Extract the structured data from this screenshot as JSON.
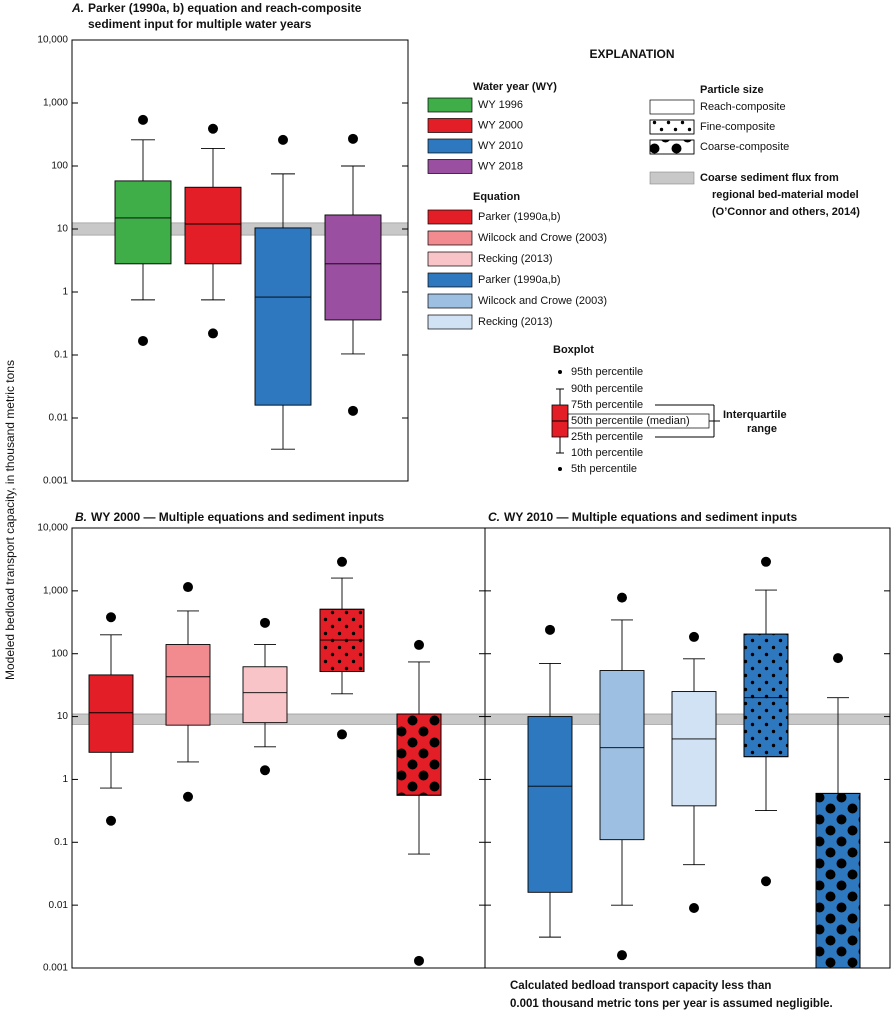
{
  "y_axis_label": "Modeled bedload transport capacity, in thousand metric tons",
  "chart_data": [
    {
      "type": "box",
      "panel": "A.",
      "title": [
        "Parker (1990a, b) equation and reach-composite",
        "sediment input for multiple water years"
      ],
      "log": true,
      "ylim": [
        0.001,
        10000
      ],
      "yticks": [
        0.001,
        0.01,
        0.1,
        1,
        10,
        100,
        {
          "value": 1000,
          "label": "1,000"
        },
        {
          "value": 10000,
          "label": "10,000"
        }
      ],
      "show_tick_labels": true,
      "band": {
        "range": [
          8,
          12.5
        ],
        "color": "#c8c8c8"
      },
      "boxes": [
        {
          "color": "#3fae49",
          "pattern": "none",
          "p5": 0.167,
          "p10": 0.75,
          "p25": 2.8,
          "median": 15,
          "p75": 58,
          "p90": 260,
          "p95": 540
        },
        {
          "color": "#e31e26",
          "pattern": "none",
          "p5": 0.22,
          "p10": 0.75,
          "p25": 2.8,
          "median": 12,
          "p75": 46,
          "p90": 190,
          "p95": 390
        },
        {
          "color": "#2e78bf",
          "pattern": "none",
          "p5": null,
          "p10": 0.0032,
          "p25": 0.016,
          "median": 0.83,
          "p75": 10.4,
          "p90": 75,
          "p95": 260
        },
        {
          "color": "#9b4fa0",
          "pattern": "none",
          "p5": 0.013,
          "p10": 0.104,
          "p25": 0.36,
          "median": 2.8,
          "p75": 16.7,
          "p90": 100,
          "p95": 270
        }
      ]
    },
    {
      "type": "box",
      "panel": "B.",
      "title": [
        "WY 2000 — Multiple equations and sediment inputs"
      ],
      "log": true,
      "ylim": [
        0.001,
        10000
      ],
      "yticks": [
        0.001,
        0.01,
        0.1,
        1,
        10,
        100,
        {
          "value": 1000,
          "label": "1,000"
        },
        {
          "value": 10000,
          "label": "10,000"
        }
      ],
      "show_tick_labels": true,
      "band": {
        "range": [
          7.5,
          11
        ],
        "color": "#c8c8c8"
      },
      "boxes": [
        {
          "color": "#e31e26",
          "pattern": "none",
          "p5": 0.22,
          "p10": 0.73,
          "p25": 2.7,
          "median": 11.5,
          "p75": 46,
          "p90": 200,
          "p95": 380
        },
        {
          "color": "#f28b90",
          "pattern": "none",
          "p5": 0.53,
          "p10": 1.9,
          "p25": 7.3,
          "median": 43,
          "p75": 140,
          "p90": 480,
          "p95": 1150
        },
        {
          "color": "#f9c4c8",
          "pattern": "none",
          "p5": 1.4,
          "p10": 3.3,
          "p25": 8,
          "median": 24,
          "p75": 62,
          "p90": 140,
          "p95": 310
        },
        {
          "color": "#e31e26",
          "pattern": "fine",
          "p5": 5.2,
          "p10": 23,
          "p25": 52,
          "median": 165,
          "p75": 510,
          "p90": 1600,
          "p95": 2900
        },
        {
          "color": "#e31e26",
          "pattern": "coarse",
          "p5": 0.0013,
          "p10": 0.065,
          "p25": 0.56,
          "median": null,
          "p75": 11,
          "p90": 74,
          "p95": 138
        }
      ]
    },
    {
      "type": "box",
      "panel": "C.",
      "title": [
        "WY 2010 — Multiple equations and sediment inputs"
      ],
      "log": true,
      "ylim": [
        0.001,
        10000
      ],
      "yticks": [
        0.001,
        0.01,
        0.1,
        1,
        10,
        100,
        1000,
        10000
      ],
      "show_tick_labels": false,
      "band": {
        "range": [
          7.5,
          11
        ],
        "color": "#c8c8c8"
      },
      "boxes": [
        {
          "color": "#2e78bf",
          "pattern": "none",
          "p5": null,
          "p10": 0.0031,
          "p25": 0.016,
          "median": 0.78,
          "p75": 10,
          "p90": 70,
          "p95": 240
        },
        {
          "color": "#9cbfe2",
          "pattern": "none",
          "p5": 0.0016,
          "p10": 0.01,
          "p25": 0.11,
          "median": 3.2,
          "p75": 54,
          "p90": 345,
          "p95": 780
        },
        {
          "color": "#d0e2f3",
          "pattern": "none",
          "p5": 0.009,
          "p10": 0.044,
          "p25": 0.38,
          "median": 4.4,
          "p75": 25,
          "p90": 83,
          "p95": 185
        },
        {
          "color": "#2e78bf",
          "pattern": "fine",
          "p5": 0.024,
          "p10": 0.32,
          "p25": 2.3,
          "median": 20,
          "p75": 205,
          "p90": 1030,
          "p95": 2900
        },
        {
          "color": "#2e78bf",
          "pattern": "coarse",
          "p5": null,
          "p10": null,
          "p25": null,
          "median": null,
          "p75": 0.6,
          "p90": 20,
          "p95": 85
        }
      ]
    }
  ],
  "explanation": {
    "title": "EXPLANATION",
    "water_year": {
      "heading": "Water year (WY)",
      "items": [
        {
          "label": "WY 1996",
          "color": "#3fae49"
        },
        {
          "label": "WY 2000",
          "color": "#e31e26"
        },
        {
          "label": "WY 2010",
          "color": "#2e78bf"
        },
        {
          "label": "WY 2018",
          "color": "#9b4fa0"
        }
      ]
    },
    "equation": {
      "heading": "Equation",
      "items": [
        {
          "label": "Parker (1990a,b)",
          "color": "#e31e26"
        },
        {
          "label": "Wilcock and Crowe (2003)",
          "color": "#f28b90"
        },
        {
          "label": "Recking (2013)",
          "color": "#f9c4c8"
        },
        {
          "label": "Parker (1990a,b)",
          "color": "#2e78bf"
        },
        {
          "label": "Wilcock and Crowe (2003)",
          "color": "#9cbfe2"
        },
        {
          "label": "Recking (2013)",
          "color": "#d0e2f3"
        }
      ]
    },
    "particle_size": {
      "heading": "Particle size",
      "items": [
        {
          "label": "Reach-composite",
          "pattern": "none"
        },
        {
          "label": "Fine-composite",
          "pattern": "fine"
        },
        {
          "label": "Coarse-composite",
          "pattern": "coarse"
        }
      ]
    },
    "band": {
      "label": [
        "Coarse sediment flux from",
        "regional bed-material model",
        "(O’Connor and others, 2014)"
      ],
      "color": "#c8c8c8"
    },
    "boxplot": {
      "heading": "Boxplot",
      "color": "#e31e26",
      "labels": [
        "95th percentile",
        "90th percentile",
        "75th percentile",
        "50th percentile (median)",
        "25th percentile",
        "10th percentile",
        "5th percentile"
      ],
      "bracket": [
        "Interquartile",
        "range"
      ]
    }
  },
  "footnote": [
    "Calculated bedload transport capacity less than",
    "0.001 thousand metric tons per year is assumed negligible."
  ]
}
